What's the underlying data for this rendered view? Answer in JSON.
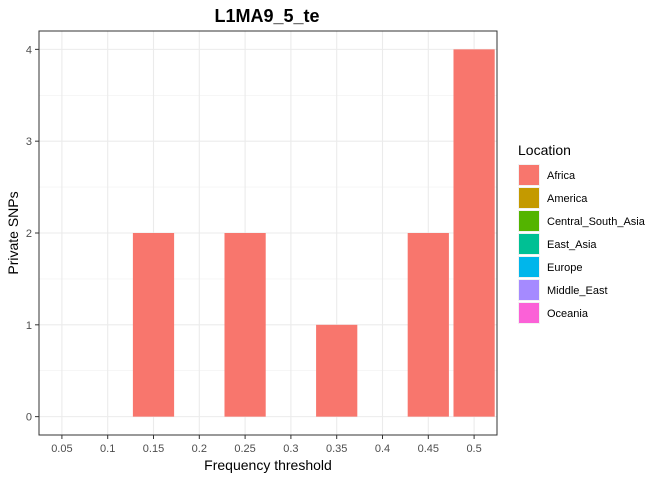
{
  "chart_data": {
    "type": "bar",
    "title": "L1MA9_5_te",
    "xlabel": "Frequency threshold",
    "ylabel": "Private SNPs",
    "x_ticks": [
      "0.05",
      "0.1",
      "0.15",
      "0.2",
      "0.25",
      "0.3",
      "0.35",
      "0.4",
      "0.45",
      "0.5"
    ],
    "xlim": [
      0.025,
      0.525
    ],
    "ylim": [
      -0.2,
      4.2
    ],
    "y_ticks": [
      0,
      1,
      2,
      3,
      4
    ],
    "grid": true,
    "bars": [
      {
        "x": 0.15,
        "value": 2,
        "series": "Africa"
      },
      {
        "x": 0.25,
        "value": 2,
        "series": "Africa"
      },
      {
        "x": 0.35,
        "value": 1,
        "series": "Africa"
      },
      {
        "x": 0.45,
        "value": 2,
        "series": "Africa"
      },
      {
        "x": 0.5,
        "value": 4,
        "series": "Africa"
      }
    ],
    "legend": {
      "title": "Location",
      "position": "right",
      "entries": [
        {
          "name": "Africa",
          "color": "#F8766D"
        },
        {
          "name": "America",
          "color": "#C49A00"
        },
        {
          "name": "Central_South_Asia",
          "color": "#53B400"
        },
        {
          "name": "East_Asia",
          "color": "#00C094"
        },
        {
          "name": "Europe",
          "color": "#00B6EB"
        },
        {
          "name": "Middle_East",
          "color": "#A58AFF"
        },
        {
          "name": "Oceania",
          "color": "#FB61D7"
        }
      ]
    }
  }
}
